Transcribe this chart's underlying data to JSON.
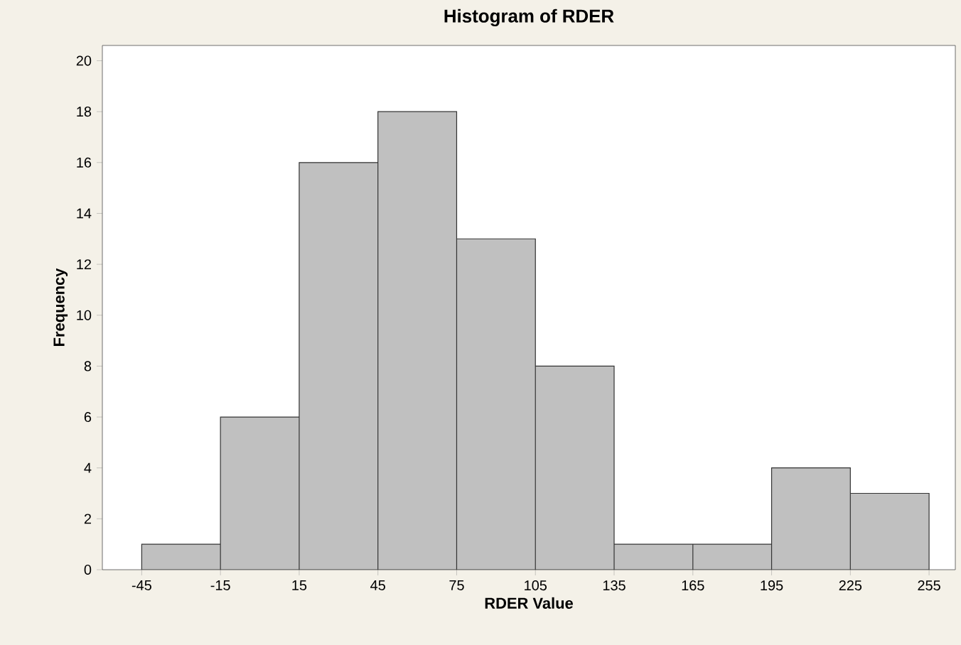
{
  "chart_data": {
    "type": "histogram",
    "title": "Histogram of RDER",
    "xlabel": "RDER Value",
    "ylabel": "Frequency",
    "bins": [
      -45,
      -15,
      15,
      45,
      75,
      105,
      135,
      165,
      195,
      225,
      255
    ],
    "values": [
      1,
      6,
      16,
      18,
      13,
      8,
      1,
      1,
      4,
      3
    ],
    "color": "#c0c0c0",
    "xlim": [
      -60,
      265
    ],
    "ylim": [
      0,
      20.6
    ],
    "xticks": [
      -45,
      -15,
      15,
      45,
      75,
      105,
      135,
      165,
      195,
      225,
      255
    ],
    "yticks": [
      0,
      2,
      4,
      6,
      8,
      10,
      12,
      14,
      16,
      18,
      20
    ],
    "grid": false
  }
}
